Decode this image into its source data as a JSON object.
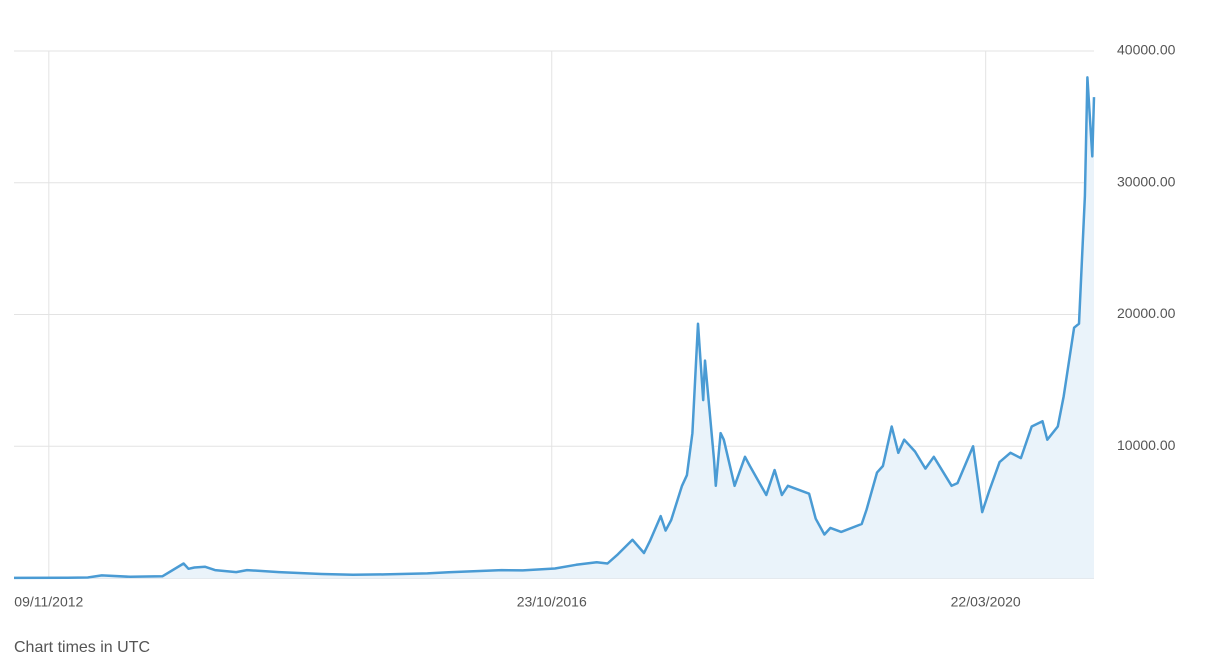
{
  "chart_data": {
    "type": "area",
    "footnote": "Chart times in UTC",
    "x": [
      "01/08/2012",
      "01/01/2013",
      "01/03/2013",
      "10/04/2013",
      "01/07/2013",
      "01/10/2013",
      "01/12/2013",
      "15/12/2013",
      "01/01/2014",
      "01/02/2014",
      "01/03/2014",
      "01/05/2014",
      "01/06/2014",
      "01/09/2014",
      "01/01/2015",
      "01/04/2015",
      "01/07/2015",
      "01/11/2015",
      "01/01/2016",
      "01/06/2016",
      "01/08/2016",
      "01/11/2016",
      "01/01/2017",
      "01/03/2017",
      "01/04/2017",
      "01/05/2017",
      "12/06/2017",
      "15/07/2017",
      "01/08/2017",
      "01/09/2017",
      "15/09/2017",
      "01/10/2017",
      "01/11/2017",
      "15/11/2017",
      "01/12/2017",
      "17/12/2017",
      "01/01/2018",
      "06/01/2018",
      "01/02/2018",
      "06/02/2018",
      "20/02/2018",
      "01/03/2018",
      "01/04/2018",
      "01/05/2018",
      "15/05/2018",
      "01/07/2018",
      "25/07/2018",
      "15/08/2018",
      "01/09/2018",
      "01/11/2018",
      "20/11/2018",
      "15/12/2018",
      "01/01/2019",
      "01/02/2019",
      "01/04/2019",
      "15/04/2019",
      "15/05/2019",
      "01/06/2019",
      "26/06/2019",
      "15/07/2019",
      "01/08/2019",
      "01/09/2019",
      "01/10/2019",
      "25/10/2019",
      "15/12/2019",
      "01/01/2020",
      "15/02/2020",
      "12/03/2020",
      "01/04/2020",
      "01/05/2020",
      "01/06/2020",
      "01/07/2020",
      "01/08/2020",
      "01/09/2020",
      "15/09/2020",
      "15/10/2020",
      "01/11/2020",
      "01/12/2020",
      "15/12/2020",
      "01/01/2021",
      "08/01/2021",
      "22/01/2021",
      "27/01/2021"
    ],
    "series": [
      {
        "color": "#4a9bd4",
        "fill": "#eaf3fa",
        "values": [
          10,
          13,
          35,
          200,
          90,
          130,
          1100,
          700,
          800,
          850,
          600,
          450,
          600,
          450,
          300,
          240,
          270,
          350,
          430,
          600,
          580,
          720,
          1000,
          1200,
          1100,
          1800,
          2900,
          1900,
          2800,
          4700,
          3600,
          4400,
          7000,
          7800,
          11000,
          19300,
          13500,
          16500,
          9000,
          7000,
          11000,
          10500,
          7000,
          9200,
          8500,
          6300,
          8200,
          6300,
          7000,
          6400,
          4500,
          3300,
          3800,
          3500,
          4100,
          5200,
          8000,
          8500,
          11500,
          9500,
          10500,
          9600,
          8300,
          9200,
          7000,
          7200,
          10000,
          5000,
          6600,
          8800,
          9500,
          9100,
          11500,
          11900,
          10500,
          11500,
          13800,
          19000,
          19300,
          29000,
          38000,
          32000,
          36500
        ]
      }
    ],
    "xlim": [
      "01/08/2012",
      "27/01/2021"
    ],
    "xticks": [
      "09/11/2012",
      "23/10/2016",
      "22/03/2020"
    ],
    "ylim": [
      0,
      40000
    ],
    "yticks": [
      {
        "value": 10000,
        "label": "10000.00"
      },
      {
        "value": 20000,
        "label": "20000.00"
      },
      {
        "value": 30000,
        "label": "30000.00"
      },
      {
        "value": 40000,
        "label": "40000.00"
      }
    ],
    "grid": true
  }
}
